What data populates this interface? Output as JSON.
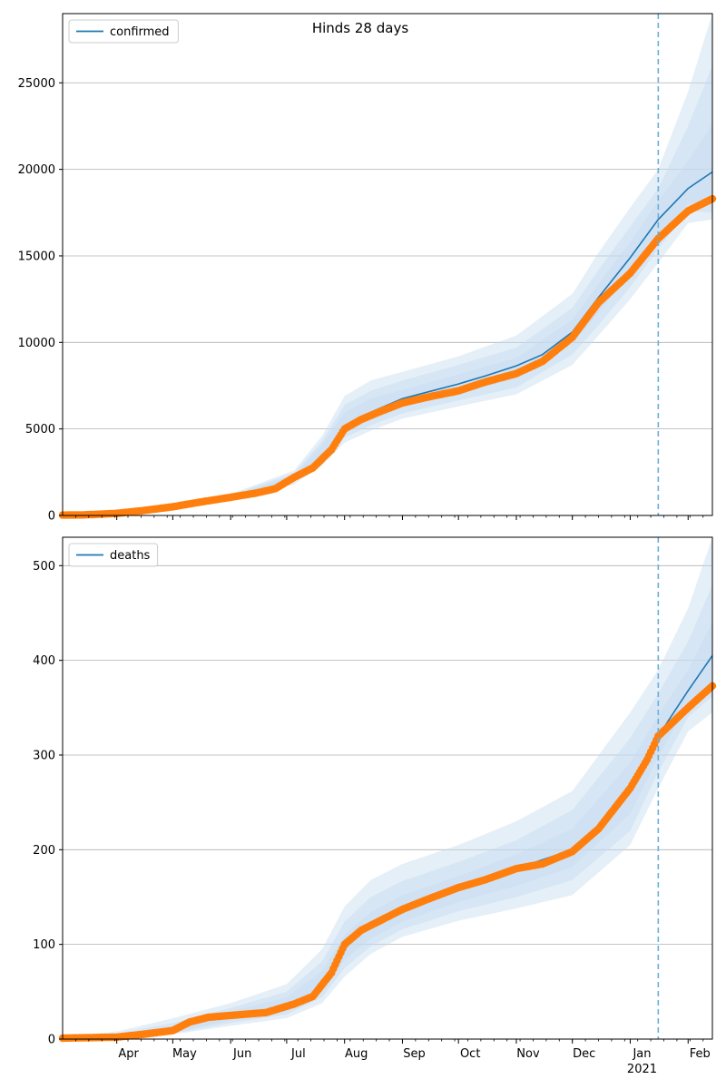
{
  "figure_title": "Hinds 28 days",
  "colors": {
    "line": "#1f77b4",
    "observed": "#ff7f0e",
    "band": "#c6dbef",
    "vline": "#6baed6",
    "grid": "#b0b0b0"
  },
  "chart_data": [
    {
      "type": "line",
      "title": "Hinds 28 days",
      "xlabel": "",
      "ylabel": "",
      "x_range": [
        "2020-03-03",
        "2021-02-14"
      ],
      "ylim": [
        0,
        29000
      ],
      "yticks": [
        0,
        5000,
        10000,
        15000,
        20000,
        25000
      ],
      "grid": "horizontal",
      "legend": "top-left",
      "forecast_start": "2021-01-16",
      "series": [
        {
          "name": "confirmed",
          "kind": "median-line",
          "points": [
            [
              "2020-03-03",
              20
            ],
            [
              "2020-03-15",
              40
            ],
            [
              "2020-04-01",
              130
            ],
            [
              "2020-04-15",
              290
            ],
            [
              "2020-05-01",
              500
            ],
            [
              "2020-05-15",
              780
            ],
            [
              "2020-06-01",
              1060
            ],
            [
              "2020-06-15",
              1330
            ],
            [
              "2020-06-25",
              1620
            ],
            [
              "2020-07-05",
              2220
            ],
            [
              "2020-07-15",
              2800
            ],
            [
              "2020-07-25",
              3900
            ],
            [
              "2020-08-01",
              5000
            ],
            [
              "2020-08-10",
              5720
            ],
            [
              "2020-08-20",
              6200
            ],
            [
              "2020-09-01",
              6750
            ],
            [
              "2020-09-15",
              7150
            ],
            [
              "2020-10-01",
              7600
            ],
            [
              "2020-10-15",
              8050
            ],
            [
              "2020-11-01",
              8650
            ],
            [
              "2020-11-15",
              9300
            ],
            [
              "2020-12-01",
              10600
            ],
            [
              "2020-12-15",
              12600
            ],
            [
              "2021-01-01",
              14900
            ],
            [
              "2021-01-16",
              17100
            ],
            [
              "2021-02-01",
              18900
            ],
            [
              "2021-02-14",
              19850
            ]
          ]
        },
        {
          "name": "",
          "kind": "observed",
          "points": [
            [
              "2020-03-03",
              20
            ],
            [
              "2020-03-15",
              35
            ],
            [
              "2020-04-01",
              120
            ],
            [
              "2020-04-15",
              280
            ],
            [
              "2020-05-01",
              500
            ],
            [
              "2020-05-15",
              760
            ],
            [
              "2020-06-01",
              1050
            ],
            [
              "2020-06-15",
              1300
            ],
            [
              "2020-06-25",
              1550
            ],
            [
              "2020-07-05",
              2200
            ],
            [
              "2020-07-15",
              2750
            ],
            [
              "2020-07-25",
              3800
            ],
            [
              "2020-08-01",
              5000
            ],
            [
              "2020-08-10",
              5550
            ],
            [
              "2020-08-20",
              6000
            ],
            [
              "2020-09-01",
              6500
            ],
            [
              "2020-09-15",
              6850
            ],
            [
              "2020-10-01",
              7200
            ],
            [
              "2020-10-15",
              7700
            ],
            [
              "2020-11-01",
              8200
            ],
            [
              "2020-11-15",
              8900
            ],
            [
              "2020-12-01",
              10300
            ],
            [
              "2020-12-15",
              12300
            ],
            [
              "2021-01-01",
              14000
            ],
            [
              "2021-01-16",
              16000
            ],
            [
              "2021-02-01",
              17600
            ],
            [
              "2021-02-14",
              18300
            ]
          ]
        }
      ],
      "bands": [
        {
          "x": [
            "2020-03-03",
            "2020-04-01",
            "2020-05-01",
            "2020-06-01",
            "2020-07-05",
            "2020-07-20",
            "2020-08-01",
            "2020-08-15",
            "2020-09-01",
            "2020-10-01",
            "2020-11-01",
            "2020-12-01",
            "2020-12-15",
            "2021-01-01",
            "2021-01-16",
            "2021-02-01",
            "2021-02-14"
          ],
          "lower": [
            0,
            100,
            400,
            900,
            1800,
            2900,
            4200,
            4900,
            5600,
            6300,
            7000,
            8700,
            10400,
            12500,
            14600,
            16900,
            17100
          ],
          "upper": [
            60,
            200,
            650,
            1250,
            2600,
            4600,
            6900,
            7800,
            8300,
            9200,
            10400,
            12800,
            15200,
            17800,
            20000,
            24500,
            29000
          ]
        },
        {
          "x": [
            "2020-03-03",
            "2020-04-01",
            "2020-05-01",
            "2020-06-01",
            "2020-07-05",
            "2020-07-20",
            "2020-08-01",
            "2020-08-15",
            "2020-09-01",
            "2020-10-01",
            "2020-11-01",
            "2020-12-01",
            "2020-12-15",
            "2021-01-01",
            "2021-01-16",
            "2021-02-01",
            "2021-02-14"
          ],
          "lower": [
            5,
            110,
            430,
            950,
            1950,
            3100,
            4500,
            5200,
            5900,
            6650,
            7400,
            9300,
            11000,
            13200,
            15400,
            17600,
            17500
          ],
          "upper": [
            45,
            170,
            580,
            1180,
            2450,
            4300,
            6400,
            7200,
            7800,
            8700,
            9700,
            12000,
            14200,
            16700,
            18900,
            22500,
            26000
          ]
        },
        {
          "x": [
            "2020-03-03",
            "2020-04-01",
            "2020-05-01",
            "2020-06-01",
            "2020-07-05",
            "2020-07-20",
            "2020-08-01",
            "2020-08-15",
            "2020-09-01",
            "2020-10-01",
            "2020-11-01",
            "2020-12-01",
            "2020-12-15",
            "2021-01-01",
            "2021-01-16",
            "2021-02-01",
            "2021-02-14"
          ],
          "lower": [
            10,
            118,
            460,
            1000,
            2070,
            3250,
            4750,
            5500,
            6250,
            7050,
            7900,
            9900,
            11700,
            14000,
            16100,
            18000,
            18200
          ],
          "upper": [
            35,
            150,
            540,
            1120,
            2350,
            4050,
            5950,
            6750,
            7250,
            8150,
            9100,
            11300,
            13400,
            15800,
            18200,
            20500,
            22600
          ]
        }
      ]
    },
    {
      "type": "line",
      "title": "",
      "xlabel": "",
      "ylabel": "",
      "x_range": [
        "2020-03-03",
        "2021-02-14"
      ],
      "ylim": [
        0,
        530
      ],
      "yticks": [
        0,
        100,
        200,
        300,
        400,
        500
      ],
      "grid": "horizontal",
      "legend": "top-left",
      "forecast_start": "2021-01-16",
      "xtick_labels": [
        {
          "date": "2020-04-01",
          "label": "Apr"
        },
        {
          "date": "2020-05-01",
          "label": "May"
        },
        {
          "date": "2020-06-01",
          "label": "Jun"
        },
        {
          "date": "2020-07-01",
          "label": "Jul"
        },
        {
          "date": "2020-08-01",
          "label": "Aug"
        },
        {
          "date": "2020-09-01",
          "label": "Sep"
        },
        {
          "date": "2020-10-01",
          "label": "Oct"
        },
        {
          "date": "2020-11-01",
          "label": "Nov"
        },
        {
          "date": "2020-12-01",
          "label": "Dec"
        },
        {
          "date": "2021-01-01",
          "label": "Jan"
        },
        {
          "date": "2021-02-01",
          "label": "Feb"
        }
      ],
      "year_label": {
        "date": "2021-01-01",
        "label": "2021"
      },
      "series": [
        {
          "name": "deaths",
          "kind": "median-line",
          "points": [
            [
              "2020-03-03",
              1
            ],
            [
              "2020-04-01",
              2
            ],
            [
              "2020-04-15",
              5
            ],
            [
              "2020-05-01",
              10
            ],
            [
              "2020-05-15",
              18
            ],
            [
              "2020-06-01",
              25
            ],
            [
              "2020-06-20",
              30
            ],
            [
              "2020-07-05",
              38
            ],
            [
              "2020-07-15",
              48
            ],
            [
              "2020-07-25",
              68
            ],
            [
              "2020-08-01",
              95
            ],
            [
              "2020-08-10",
              115
            ],
            [
              "2020-08-20",
              125
            ],
            [
              "2020-09-01",
              138
            ],
            [
              "2020-10-01",
              160
            ],
            [
              "2020-11-01",
              180
            ],
            [
              "2020-12-01",
              200
            ],
            [
              "2020-12-15",
              225
            ],
            [
              "2021-01-01",
              262
            ],
            [
              "2021-01-16",
              320
            ],
            [
              "2021-02-01",
              368
            ],
            [
              "2021-02-14",
              405
            ]
          ]
        },
        {
          "name": "",
          "kind": "observed",
          "points": [
            [
              "2020-03-03",
              1
            ],
            [
              "2020-04-01",
              2
            ],
            [
              "2020-04-15",
              5
            ],
            [
              "2020-05-01",
              9
            ],
            [
              "2020-05-10",
              18
            ],
            [
              "2020-05-20",
              23
            ],
            [
              "2020-06-01",
              25
            ],
            [
              "2020-06-20",
              28
            ],
            [
              "2020-07-05",
              37
            ],
            [
              "2020-07-15",
              45
            ],
            [
              "2020-07-25",
              70
            ],
            [
              "2020-08-01",
              100
            ],
            [
              "2020-08-10",
              115
            ],
            [
              "2020-08-20",
              125
            ],
            [
              "2020-09-01",
              137
            ],
            [
              "2020-09-15",
              148
            ],
            [
              "2020-10-01",
              160
            ],
            [
              "2020-10-15",
              168
            ],
            [
              "2020-11-01",
              180
            ],
            [
              "2020-11-15",
              185
            ],
            [
              "2020-12-01",
              198
            ],
            [
              "2020-12-15",
              222
            ],
            [
              "2021-01-01",
              265
            ],
            [
              "2021-01-10",
              295
            ],
            [
              "2021-01-16",
              320
            ],
            [
              "2021-02-01",
              350
            ],
            [
              "2021-02-14",
              373
            ]
          ]
        }
      ],
      "bands": [
        {
          "x": [
            "2020-03-03",
            "2020-04-01",
            "2020-05-01",
            "2020-06-01",
            "2020-07-01",
            "2020-07-20",
            "2020-08-01",
            "2020-08-15",
            "2020-09-01",
            "2020-10-01",
            "2020-11-01",
            "2020-12-01",
            "2021-01-01",
            "2021-01-16",
            "2021-02-01",
            "2021-02-14"
          ],
          "lower": [
            0,
            1,
            5,
            14,
            22,
            38,
            66,
            90,
            108,
            125,
            138,
            152,
            205,
            265,
            325,
            345
          ],
          "upper": [
            3,
            8,
            22,
            38,
            58,
            95,
            140,
            168,
            185,
            205,
            230,
            262,
            345,
            390,
            455,
            530
          ]
        },
        {
          "x": [
            "2020-03-03",
            "2020-04-01",
            "2020-05-01",
            "2020-06-01",
            "2020-07-01",
            "2020-07-20",
            "2020-08-01",
            "2020-08-15",
            "2020-09-01",
            "2020-10-01",
            "2020-11-01",
            "2020-12-01",
            "2021-01-01",
            "2021-01-16",
            "2021-02-01",
            "2021-02-14"
          ],
          "lower": [
            0,
            1,
            6,
            17,
            26,
            44,
            75,
            98,
            116,
            135,
            150,
            168,
            220,
            282,
            340,
            362
          ],
          "upper": [
            2,
            6,
            17,
            33,
            50,
            82,
            124,
            150,
            167,
            187,
            210,
            242,
            318,
            365,
            420,
            480
          ]
        },
        {
          "x": [
            "2020-03-03",
            "2020-04-01",
            "2020-05-01",
            "2020-06-01",
            "2020-07-01",
            "2020-07-20",
            "2020-08-01",
            "2020-08-15",
            "2020-09-01",
            "2020-10-01",
            "2020-11-01",
            "2020-12-01",
            "2021-01-01",
            "2021-01-16",
            "2021-02-01",
            "2021-02-14"
          ],
          "lower": [
            0,
            1,
            7,
            20,
            30,
            50,
            84,
            106,
            124,
            145,
            162,
            182,
            238,
            298,
            355,
            378
          ],
          "upper": [
            2,
            4,
            14,
            29,
            44,
            72,
            110,
            134,
            152,
            172,
            195,
            222,
            292,
            342,
            390,
            440
          ]
        }
      ]
    }
  ]
}
